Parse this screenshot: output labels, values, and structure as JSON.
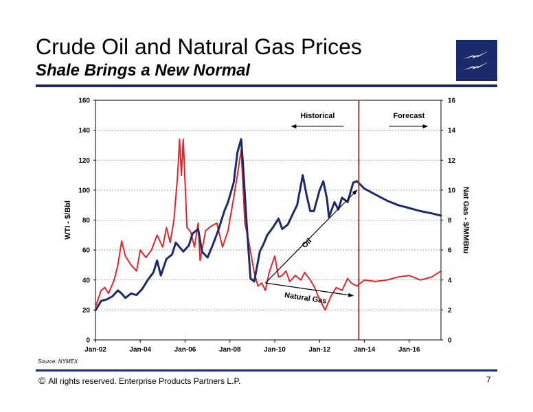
{
  "slide": {
    "title": "Crude Oil and Natural Gas Prices",
    "subtitle": "Shale Brings a New Normal",
    "source": "Source:  NYMEX",
    "copyright_symbol": "©",
    "footer": "All rights reserved. Enterprise Products Partners L.P.",
    "page_number": "7",
    "brand_color": "#1b2a6b",
    "logo_icon": "lightning-bolt-logo-icon"
  },
  "chart_data": {
    "type": "line",
    "title": "",
    "xlabel": "",
    "ylabel": "WTI - $/Bbl",
    "y2label": "Nat Gas - $/MMBtu",
    "x_tick_labels": [
      "Jan-02",
      "Jan-04",
      "Jan-06",
      "Jan-08",
      "Jan-10",
      "Jan-12",
      "Jan-14",
      "Jan-16"
    ],
    "x_range": [
      "2002-01",
      "2017-06"
    ],
    "ylim": [
      0,
      160
    ],
    "y_ticks": [
      0,
      20,
      40,
      60,
      80,
      100,
      120,
      140,
      160
    ],
    "y2lim": [
      0,
      16
    ],
    "y2_ticks": [
      0,
      2,
      4,
      6,
      8,
      10,
      12,
      14,
      16
    ],
    "grid": true,
    "annotations": {
      "historical": "Historical",
      "forecast": "Forecast",
      "oil": "Oil",
      "natural_gas": "Natural Gas",
      "divider_date": "2013-10"
    },
    "series": [
      {
        "name": "Oil",
        "axis": "left",
        "color": "#1b2a6b",
        "points": [
          [
            "2002-01",
            19.7
          ],
          [
            "2002-04",
            26
          ],
          [
            "2002-07",
            27
          ],
          [
            "2002-10",
            29
          ],
          [
            "2003-01",
            33
          ],
          [
            "2003-03",
            31
          ],
          [
            "2003-05",
            28
          ],
          [
            "2003-08",
            31
          ],
          [
            "2003-11",
            30
          ],
          [
            "2004-02",
            34
          ],
          [
            "2004-05",
            40
          ],
          [
            "2004-08",
            45
          ],
          [
            "2004-10",
            53
          ],
          [
            "2004-12",
            43
          ],
          [
            "2005-03",
            54
          ],
          [
            "2005-06",
            57
          ],
          [
            "2005-08",
            65
          ],
          [
            "2005-10",
            62
          ],
          [
            "2005-12",
            59
          ],
          [
            "2006-03",
            63
          ],
          [
            "2006-05",
            71
          ],
          [
            "2006-08",
            74
          ],
          [
            "2006-10",
            59
          ],
          [
            "2007-01",
            55
          ],
          [
            "2007-04",
            64
          ],
          [
            "2007-07",
            74
          ],
          [
            "2007-10",
            86
          ],
          [
            "2007-12",
            92
          ],
          [
            "2008-03",
            105
          ],
          [
            "2008-05",
            125
          ],
          [
            "2008-07",
            134
          ],
          [
            "2008-08",
            117
          ],
          [
            "2008-10",
            77
          ],
          [
            "2008-12",
            41
          ],
          [
            "2009-02",
            39
          ],
          [
            "2009-05",
            59
          ],
          [
            "2009-07",
            64
          ],
          [
            "2009-09",
            70
          ],
          [
            "2009-12",
            75
          ],
          [
            "2010-03",
            81
          ],
          [
            "2010-05",
            74
          ],
          [
            "2010-08",
            77
          ],
          [
            "2010-11",
            85
          ],
          [
            "2011-01",
            90
          ],
          [
            "2011-04",
            110
          ],
          [
            "2011-06",
            97
          ],
          [
            "2011-08",
            86
          ],
          [
            "2011-10",
            86
          ],
          [
            "2012-01",
            100
          ],
          [
            "2012-03",
            106
          ],
          [
            "2012-05",
            94
          ],
          [
            "2012-06",
            82
          ],
          [
            "2012-09",
            92
          ],
          [
            "2012-11",
            87
          ],
          [
            "2013-01",
            95
          ],
          [
            "2013-04",
            92
          ],
          [
            "2013-07",
            105
          ],
          [
            "2013-09",
            106
          ],
          [
            "2014-01",
            101
          ],
          [
            "2014-07",
            97
          ],
          [
            "2015-01",
            93
          ],
          [
            "2015-07",
            90
          ],
          [
            "2016-01",
            88
          ],
          [
            "2016-07",
            86
          ],
          [
            "2017-01",
            84.5
          ],
          [
            "2017-06",
            83
          ]
        ]
      },
      {
        "name": "Natural Gas",
        "axis": "right",
        "color": "#e0262b",
        "points": [
          [
            "2002-01",
            2.2
          ],
          [
            "2002-04",
            3.3
          ],
          [
            "2002-06",
            3.5
          ],
          [
            "2002-08",
            3.1
          ],
          [
            "2002-11",
            4.0
          ],
          [
            "2003-01",
            5.0
          ],
          [
            "2003-03",
            6.6
          ],
          [
            "2003-05",
            5.6
          ],
          [
            "2003-08",
            5.0
          ],
          [
            "2003-11",
            4.6
          ],
          [
            "2004-01",
            6.0
          ],
          [
            "2004-04",
            5.5
          ],
          [
            "2004-07",
            6.0
          ],
          [
            "2004-10",
            7.0
          ],
          [
            "2005-01",
            6.2
          ],
          [
            "2005-03",
            7.5
          ],
          [
            "2005-05",
            6.5
          ],
          [
            "2005-07",
            8.0
          ],
          [
            "2005-09",
            11.0
          ],
          [
            "2005-10",
            13.4
          ],
          [
            "2005-11",
            11.0
          ],
          [
            "2005-12",
            13.4
          ],
          [
            "2006-02",
            7.5
          ],
          [
            "2006-04",
            7.2
          ],
          [
            "2006-06",
            6.2
          ],
          [
            "2006-08",
            7.8
          ],
          [
            "2006-09",
            5.3
          ],
          [
            "2006-12",
            7.3
          ],
          [
            "2007-03",
            7.6
          ],
          [
            "2007-06",
            7.8
          ],
          [
            "2007-09",
            6.2
          ],
          [
            "2007-12",
            7.3
          ],
          [
            "2008-03",
            9.5
          ],
          [
            "2008-05",
            11.0
          ],
          [
            "2008-07",
            12.7
          ],
          [
            "2008-09",
            7.8
          ],
          [
            "2008-11",
            6.6
          ],
          [
            "2009-02",
            4.5
          ],
          [
            "2009-04",
            3.6
          ],
          [
            "2009-06",
            3.8
          ],
          [
            "2009-08",
            3.3
          ],
          [
            "2009-10",
            4.5
          ],
          [
            "2010-01",
            5.6
          ],
          [
            "2010-03",
            4.2
          ],
          [
            "2010-05",
            4.3
          ],
          [
            "2010-07",
            4.6
          ],
          [
            "2010-09",
            3.9
          ],
          [
            "2010-12",
            4.3
          ],
          [
            "2011-03",
            4.0
          ],
          [
            "2011-05",
            4.5
          ],
          [
            "2011-08",
            4.0
          ],
          [
            "2011-10",
            3.6
          ],
          [
            "2012-01",
            2.7
          ],
          [
            "2012-04",
            2.0
          ],
          [
            "2012-07",
            2.9
          ],
          [
            "2012-10",
            3.5
          ],
          [
            "2013-01",
            3.3
          ],
          [
            "2013-04",
            4.1
          ],
          [
            "2013-06",
            3.8
          ],
          [
            "2013-09",
            3.6
          ],
          [
            "2014-01",
            4.0
          ],
          [
            "2014-07",
            3.9
          ],
          [
            "2015-01",
            4.0
          ],
          [
            "2015-07",
            4.2
          ],
          [
            "2016-01",
            4.3
          ],
          [
            "2016-07",
            4.0
          ],
          [
            "2017-01",
            4.2
          ],
          [
            "2017-06",
            4.6
          ]
        ]
      }
    ]
  }
}
